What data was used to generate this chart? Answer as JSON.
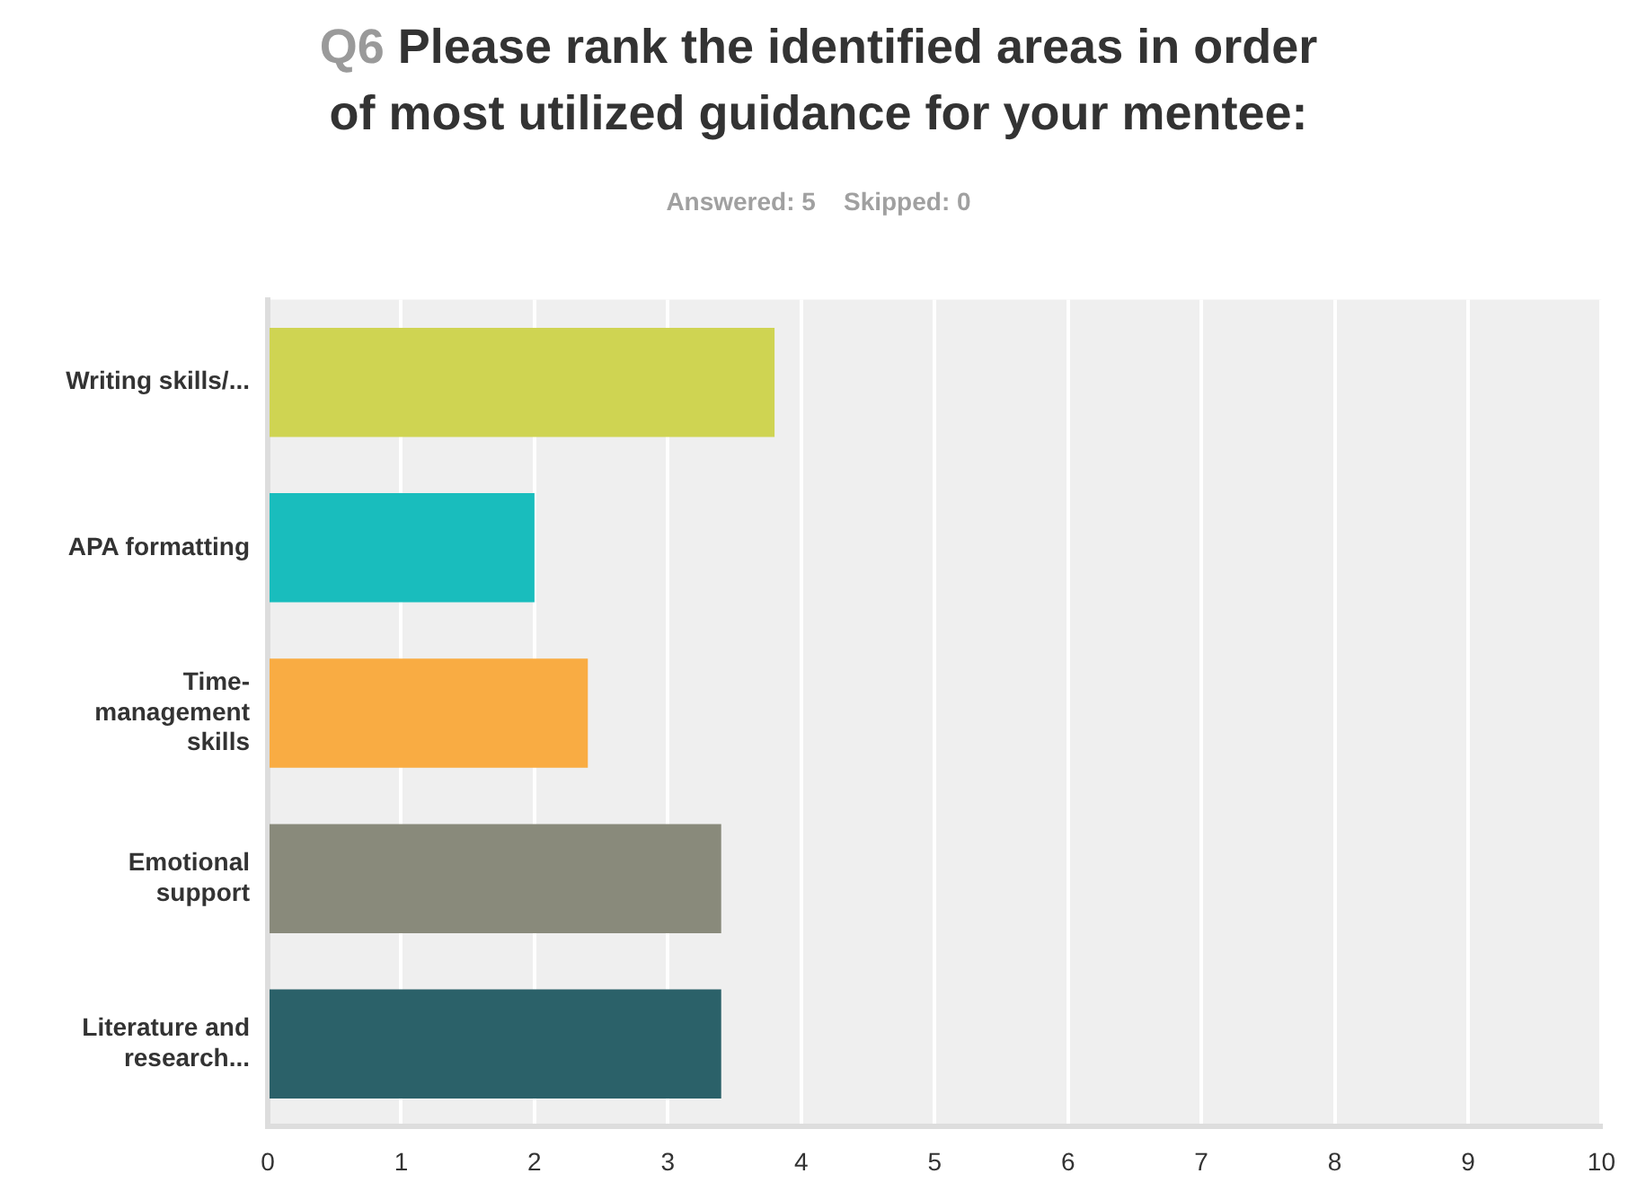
{
  "chart_data": {
    "type": "bar",
    "orientation": "horizontal",
    "title": "Q6 Please rank the identified areas in order of most utilized guidance for your mentee:",
    "subtitle": "Answered: 5    Skipped: 0",
    "categories": [
      "Writing skills/...",
      "APA formatting",
      "Time-management skills",
      "Emotional support",
      "Literature and research..."
    ],
    "values": [
      3.8,
      2.0,
      2.4,
      3.4,
      3.4
    ],
    "colors": [
      "#cfd452",
      "#19bdbd",
      "#f9ac43",
      "#898a7b",
      "#2b6169"
    ],
    "xlim": [
      0,
      10
    ],
    "xticks": [
      0,
      1,
      2,
      3,
      4,
      5,
      6,
      7,
      8,
      9,
      10
    ],
    "grid": "x"
  }
}
